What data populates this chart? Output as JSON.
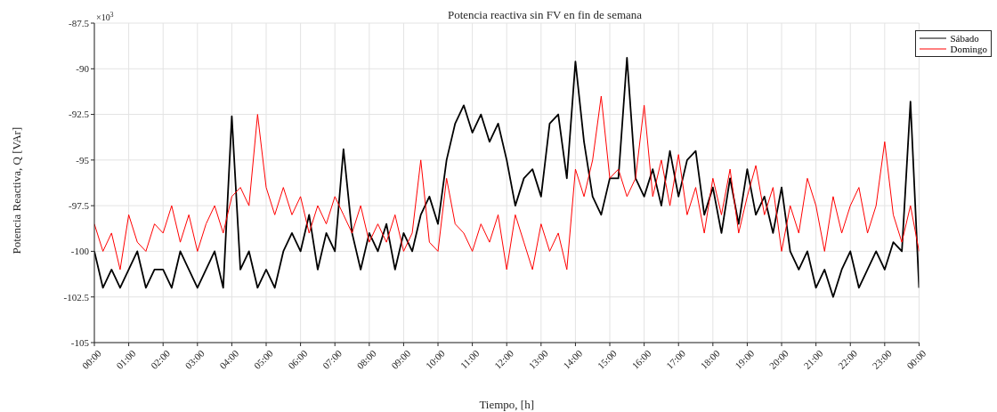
{
  "chart_data": {
    "type": "line",
    "title": "Potencia reactiva sin FV en fin de semana",
    "xlabel": "Tiempo, [h]",
    "ylabel": "Potencia Reactiva, Q [VAr]",
    "annotations": [
      "×10$^{3}$"
    ],
    "x": [
      0,
      0.25,
      0.5,
      0.75,
      1,
      1.25,
      1.5,
      1.75,
      2,
      2.25,
      2.5,
      2.75,
      3,
      3.25,
      3.5,
      3.75,
      4,
      4.25,
      4.5,
      4.75,
      5,
      5.25,
      5.5,
      5.75,
      6,
      6.25,
      6.5,
      6.75,
      7,
      7.25,
      7.5,
      7.75,
      8,
      8.25,
      8.5,
      8.75,
      9,
      9.25,
      9.5,
      9.75,
      10,
      10.25,
      10.5,
      10.75,
      11,
      11.25,
      11.5,
      11.75,
      12,
      12.25,
      12.5,
      12.75,
      13,
      13.25,
      13.5,
      13.75,
      14,
      14.25,
      14.5,
      14.75,
      15,
      15.25,
      15.5,
      15.75,
      16,
      16.25,
      16.5,
      16.75,
      17,
      17.25,
      17.5,
      17.75,
      18,
      18.25,
      18.5,
      18.75,
      19,
      19.25,
      19.5,
      19.75,
      20,
      20.25,
      20.5,
      20.75,
      21,
      21.25,
      21.5,
      21.75,
      22,
      22.25,
      22.5,
      22.75,
      23,
      23.25,
      23.5,
      23.75,
      24
    ],
    "series": [
      {
        "name": "Sábado",
        "color": "#000000",
        "values": [
          -100,
          -102,
          -101,
          -102,
          -101,
          -100,
          -102,
          -101,
          -101,
          -102,
          -100,
          -101,
          -102,
          -101,
          -100,
          -102,
          -92.6,
          -101,
          -100,
          -102,
          -101,
          -102,
          -100,
          -99,
          -100,
          -98,
          -101,
          -99,
          -100,
          -94.4,
          -99,
          -101,
          -99,
          -100,
          -98.5,
          -101,
          -99,
          -100,
          -98,
          -97,
          -98.5,
          -95,
          -93,
          -92,
          -93.5,
          -92.5,
          -94,
          -93,
          -95,
          -97.5,
          -96,
          -95.5,
          -97,
          -93,
          -92.5,
          -96,
          -89.6,
          -94,
          -97,
          -98,
          -96,
          -96,
          -89.4,
          -96,
          -97,
          -95.5,
          -97.5,
          -94.5,
          -97,
          -95,
          -94.5,
          -98,
          -96.5,
          -99,
          -96,
          -98.5,
          -95.5,
          -98,
          -97,
          -99,
          -96.5,
          -100,
          -101,
          -100,
          -102,
          -101,
          -102.5,
          -101,
          -100,
          -102,
          -101,
          -100,
          -101,
          -99.5,
          -100,
          -91.8,
          -102
        ]
      },
      {
        "name": "Domingo",
        "color": "#ff0000",
        "values": [
          -98.5,
          -100,
          -99,
          -101,
          -98,
          -99.5,
          -100,
          -98.5,
          -99,
          -97.5,
          -99.5,
          -98,
          -100,
          -98.5,
          -97.5,
          -99,
          -97,
          -96.5,
          -97.5,
          -92.5,
          -96.5,
          -98,
          -96.5,
          -98,
          -97,
          -99,
          -97.5,
          -98.5,
          -97,
          -98,
          -99,
          -97.5,
          -99.5,
          -98.5,
          -99.5,
          -98,
          -100,
          -99,
          -95,
          -99.5,
          -100,
          -96,
          -98.5,
          -99,
          -100,
          -98.5,
          -99.5,
          -98,
          -101,
          -98,
          -99.5,
          -101,
          -98.5,
          -100,
          -99,
          -101,
          -95.5,
          -97,
          -95,
          -91.5,
          -96,
          -95.5,
          -97,
          -96,
          -92,
          -97,
          -95,
          -97.5,
          -94.7,
          -98,
          -96.5,
          -99,
          -96,
          -98,
          -95.5,
          -99,
          -97,
          -95.3,
          -98,
          -96.5,
          -100,
          -97.5,
          -99,
          -96,
          -97.5,
          -100,
          -97,
          -99,
          -97.5,
          -96.5,
          -99,
          -97.5,
          -94,
          -98,
          -99.5,
          -97.5,
          -100
        ]
      }
    ],
    "xlim": [
      0,
      24
    ],
    "xticks": [
      {
        "value": 0,
        "label": "00:00"
      },
      {
        "value": 1,
        "label": "01:00"
      },
      {
        "value": 2,
        "label": "02:00"
      },
      {
        "value": 3,
        "label": "03:00"
      },
      {
        "value": 4,
        "label": "04:00"
      },
      {
        "value": 5,
        "label": "05:00"
      },
      {
        "value": 6,
        "label": "06:00"
      },
      {
        "value": 7,
        "label": "07:00"
      },
      {
        "value": 8,
        "label": "08:00"
      },
      {
        "value": 9,
        "label": "09:00"
      },
      {
        "value": 10,
        "label": "10:00"
      },
      {
        "value": 11,
        "label": "11:00"
      },
      {
        "value": 12,
        "label": "12:00"
      },
      {
        "value": 13,
        "label": "13:00"
      },
      {
        "value": 14,
        "label": "14:00"
      },
      {
        "value": 15,
        "label": "15:00"
      },
      {
        "value": 16,
        "label": "16:00"
      },
      {
        "value": 17,
        "label": "17:00"
      },
      {
        "value": 18,
        "label": "18:00"
      },
      {
        "value": 19,
        "label": "19:00"
      },
      {
        "value": 20,
        "label": "20:00"
      },
      {
        "value": 21,
        "label": "21:00"
      },
      {
        "value": 22,
        "label": "22:00"
      },
      {
        "value": 23,
        "label": "23:00"
      },
      {
        "value": 24,
        "label": "00:00"
      }
    ],
    "ylim": [
      -105,
      -87.5
    ],
    "yticks": [
      -105,
      -102.5,
      -100,
      -97.5,
      -95,
      -92.5,
      -90,
      -87.5
    ],
    "grid": true,
    "legend": "top right"
  }
}
